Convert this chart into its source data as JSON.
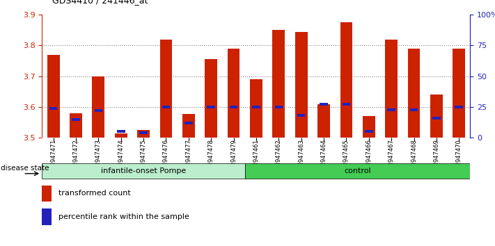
{
  "title": "GDS4410 / 241446_at",
  "samples": [
    "GSM947471",
    "GSM947472",
    "GSM947473",
    "GSM947474",
    "GSM947475",
    "GSM947476",
    "GSM947477",
    "GSM947478",
    "GSM947479",
    "GSM947461",
    "GSM947462",
    "GSM947463",
    "GSM947464",
    "GSM947465",
    "GSM947466",
    "GSM947467",
    "GSM947468",
    "GSM947469",
    "GSM947470"
  ],
  "red_values": [
    3.77,
    3.58,
    3.7,
    3.515,
    3.525,
    3.82,
    3.578,
    3.755,
    3.79,
    3.69,
    3.85,
    3.845,
    3.61,
    3.875,
    3.57,
    3.82,
    3.79,
    3.64,
    3.79
  ],
  "blue_pct": [
    24,
    15,
    22,
    5,
    4,
    25,
    12,
    25,
    25,
    25,
    25,
    18,
    27,
    27,
    5,
    23,
    23,
    16,
    25
  ],
  "n_pompe": 9,
  "n_control": 10,
  "ymin": 3.5,
  "ymax": 3.9,
  "yticks_left": [
    3.5,
    3.6,
    3.7,
    3.8,
    3.9
  ],
  "yticks_right": [
    0,
    25,
    50,
    75,
    100
  ],
  "grid_lines": [
    3.6,
    3.7,
    3.8
  ],
  "bar_color": "#CC2200",
  "blue_color": "#2222BB",
  "group1_bg": "#BBEECC",
  "group2_bg": "#44CC55",
  "xtick_bg": "#CCCCCC",
  "legend_red": "transformed count",
  "legend_blue": "percentile rank within the sample",
  "disease_state_label": "disease state"
}
